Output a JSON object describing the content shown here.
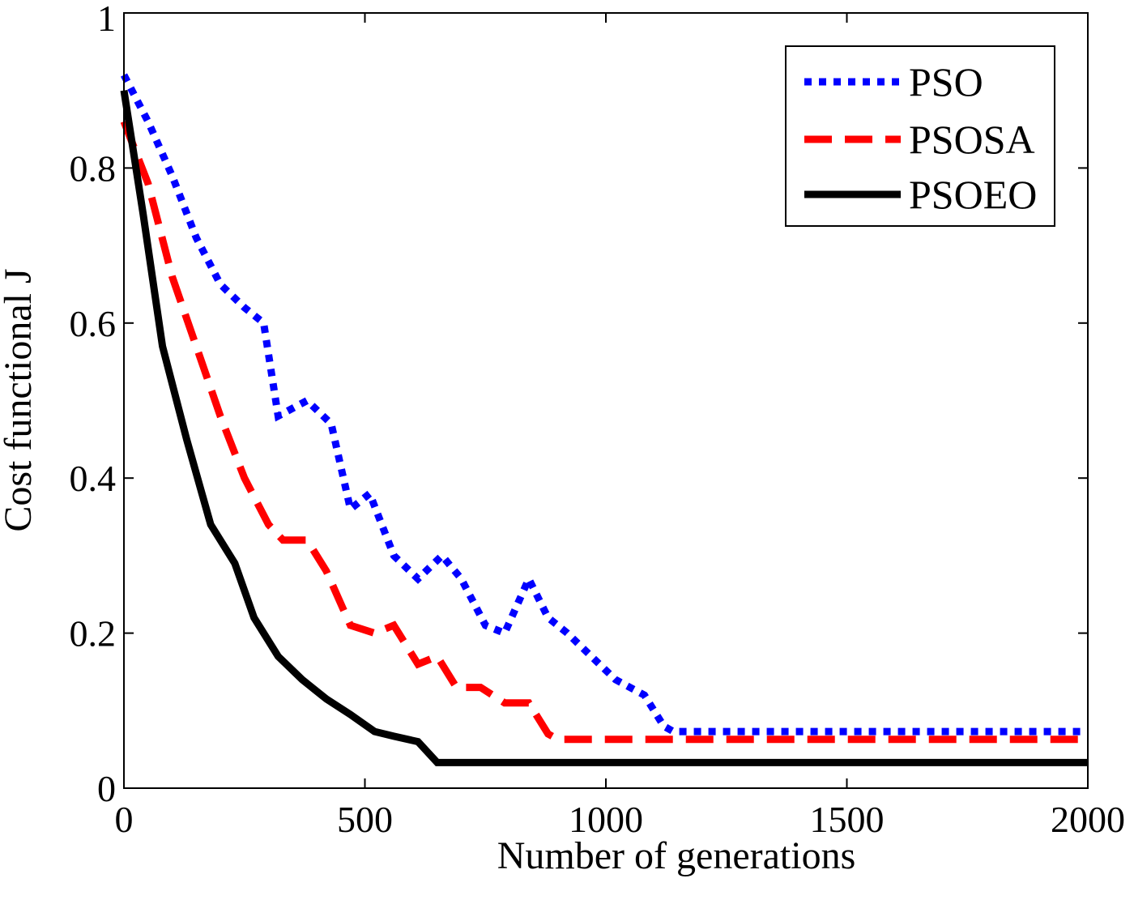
{
  "chart_data": {
    "type": "line",
    "title": "",
    "xlabel": "Number of generations",
    "ylabel": "Cost  functional  J",
    "xlim": [
      0,
      2000
    ],
    "ylim": [
      0,
      1
    ],
    "xticks": [
      0,
      500,
      1000,
      1500,
      2000
    ],
    "xtick_labels": [
      "0",
      "500",
      "1000",
      "1500",
      "2000"
    ],
    "yticks": [
      0,
      0.2,
      0.4,
      0.6,
      0.8,
      1
    ],
    "ytick_labels": [
      "0",
      "0.2",
      "0.4",
      "0.6",
      "0.8",
      "1"
    ],
    "grid": false,
    "legend_position": "top-right",
    "series": [
      {
        "name": "PSO",
        "color": "#0000ff",
        "style": "dotted",
        "x": [
          0,
          50,
          100,
          150,
          200,
          250,
          290,
          320,
          380,
          430,
          470,
          510,
          560,
          610,
          660,
          700,
          750,
          790,
          840,
          880,
          920,
          970,
          1020,
          1080,
          1120,
          1140,
          1200,
          1500,
          2000
        ],
        "y": [
          0.92,
          0.86,
          0.79,
          0.71,
          0.65,
          0.62,
          0.6,
          0.48,
          0.5,
          0.47,
          0.36,
          0.38,
          0.3,
          0.27,
          0.3,
          0.27,
          0.21,
          0.2,
          0.27,
          0.22,
          0.2,
          0.17,
          0.14,
          0.12,
          0.08,
          0.073,
          0.073,
          0.073,
          0.073
        ]
      },
      {
        "name": "PSOSA",
        "color": "#ff0000",
        "style": "dashed",
        "x": [
          0,
          50,
          100,
          150,
          200,
          250,
          300,
          330,
          380,
          420,
          470,
          520,
          560,
          610,
          650,
          690,
          740,
          790,
          840,
          880,
          900,
          1000,
          1500,
          2000
        ],
        "y": [
          0.86,
          0.78,
          0.66,
          0.57,
          0.48,
          0.4,
          0.34,
          0.32,
          0.32,
          0.28,
          0.21,
          0.2,
          0.21,
          0.16,
          0.17,
          0.13,
          0.13,
          0.11,
          0.11,
          0.07,
          0.063,
          0.063,
          0.063,
          0.063
        ]
      },
      {
        "name": "PSOEO",
        "color": "#000000",
        "style": "solid",
        "x": [
          0,
          40,
          80,
          130,
          180,
          230,
          270,
          320,
          370,
          420,
          470,
          520,
          560,
          610,
          650,
          700,
          1000,
          1500,
          2000
        ],
        "y": [
          0.9,
          0.74,
          0.57,
          0.45,
          0.34,
          0.29,
          0.22,
          0.17,
          0.14,
          0.115,
          0.095,
          0.073,
          0.067,
          0.06,
          0.033,
          0.033,
          0.033,
          0.033,
          0.033
        ]
      }
    ]
  }
}
